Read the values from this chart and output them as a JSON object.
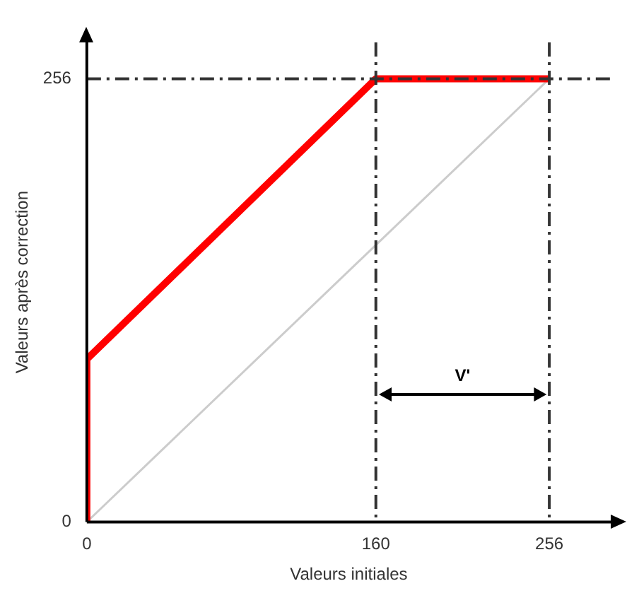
{
  "chart_data": {
    "type": "line",
    "xlabel": "Valeurs initiales",
    "ylabel": "Valeurs après correction",
    "series": [
      {
        "color": "#ff0000",
        "x": [
          0,
          0,
          160,
          256
        ],
        "values": [
          0,
          94,
          256,
          256
        ]
      },
      {
        "color": "#cccccc",
        "x": [
          0,
          256
        ],
        "values": [
          0,
          256
        ]
      }
    ],
    "xlim": [
      0,
      290
    ],
    "ylim": [
      0,
      277
    ],
    "xticks": [
      0,
      160,
      256
    ],
    "yticks": [
      0,
      256
    ],
    "ref_lines": [
      {
        "axis": "x",
        "value": 160,
        "color": "#333333",
        "line_style": "dashdot"
      },
      {
        "axis": "x",
        "value": 256,
        "color": "#333333",
        "line_style": "dashdot"
      },
      {
        "axis": "y",
        "value": 256,
        "color": "#333333",
        "line_style": "dashdot"
      }
    ],
    "annotations": [
      "V'"
    ],
    "grid": false,
    "legend": false,
    "marker": "none",
    "line_style": "solid"
  }
}
